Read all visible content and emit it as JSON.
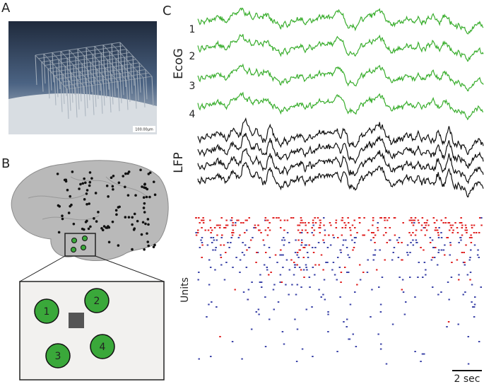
{
  "panels": {
    "a": {
      "label": "A",
      "scale_bar": "100.00μm"
    },
    "b": {
      "label": "B",
      "electrodes": [
        "1",
        "2",
        "3",
        "4"
      ]
    },
    "c": {
      "label": "C",
      "ecog": {
        "title": "EcoG",
        "channels": [
          "1",
          "2",
          "3",
          "4"
        ]
      },
      "lfp": {
        "title": "LFP"
      },
      "units": {
        "title": "Units"
      },
      "time_scale": "2 sec"
    }
  }
}
